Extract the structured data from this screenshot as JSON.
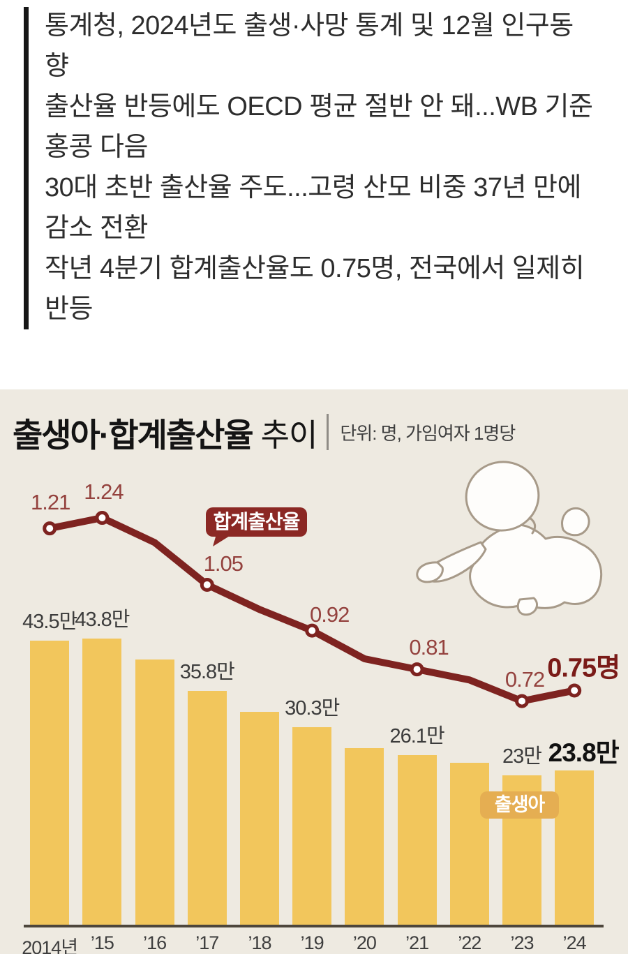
{
  "article": {
    "lines": [
      "통계청, 2024년도 출생·사망 통계 및 12월 인구동",
      "향",
      "출산율 반등에도 OECD 평균 절반 안 돼...WB 기준",
      "홍콩 다음",
      "30대 초반 출산율 주도...고령 산모 비중 37년 만에",
      "감소 전환",
      "작년 4분기 합계출산율도 0.75명, 전국에서 일제히",
      "반등"
    ]
  },
  "chart": {
    "title": "출생아·합계출산율",
    "title_suffix": "추이",
    "unit_label": "단위: 명, 가임여자 1명당",
    "line_badge": "합계출산율",
    "bar_badge": "출생아"
  },
  "chart_data": {
    "type": "bar",
    "combo": "bar+line",
    "title": "출생아·합계출산율 추이",
    "subtitle_unit": "단위: 명, 가임여자 1명당",
    "categories": [
      "2014년",
      "’15",
      "’16",
      "’17",
      "’18",
      "’19",
      "’20",
      "’21",
      "’22",
      "’23",
      "’24"
    ],
    "series": [
      {
        "name": "출생아",
        "type": "bar",
        "unit": "만",
        "values": [
          43.5,
          43.8,
          40.6,
          35.8,
          32.7,
          30.3,
          27.2,
          26.1,
          24.9,
          23.0,
          23.8
        ],
        "labels": [
          "43.5만",
          "43.8만",
          "",
          "35.8만",
          "",
          "30.3만",
          "",
          "26.1만",
          "",
          "23만",
          "23.8만"
        ]
      },
      {
        "name": "합계출산율",
        "type": "line",
        "unit": "명(가임여자 1명당)",
        "values": [
          1.21,
          1.24,
          1.17,
          1.05,
          0.98,
          0.92,
          0.84,
          0.81,
          0.78,
          0.72,
          0.75
        ],
        "labels": [
          "1.21",
          "1.24",
          "",
          "1.05",
          "",
          "0.92",
          "",
          "0.81",
          "",
          "0.72",
          "0.75명"
        ]
      }
    ],
    "grid": false,
    "legend_position": "inline-badges"
  },
  "colors": {
    "background": "#eeeae1",
    "bar": "#f2c65c",
    "line": "#7e2320",
    "line-label": "#94423e",
    "line-label-strong": "#7a1b18",
    "bar-label": "#3c3c3c",
    "bar-label-strong": "#111111",
    "line-badge-bg": "#8b2824",
    "bar-badge-bg": "#e5ae52",
    "axis": "#4d463c",
    "x-label": "#3e3e3e",
    "article-text": "#2d2d2d",
    "quote-bar": "#161616",
    "title": "#141414",
    "unit": "#3f3f3f",
    "baby-outline": "#a79a89"
  }
}
